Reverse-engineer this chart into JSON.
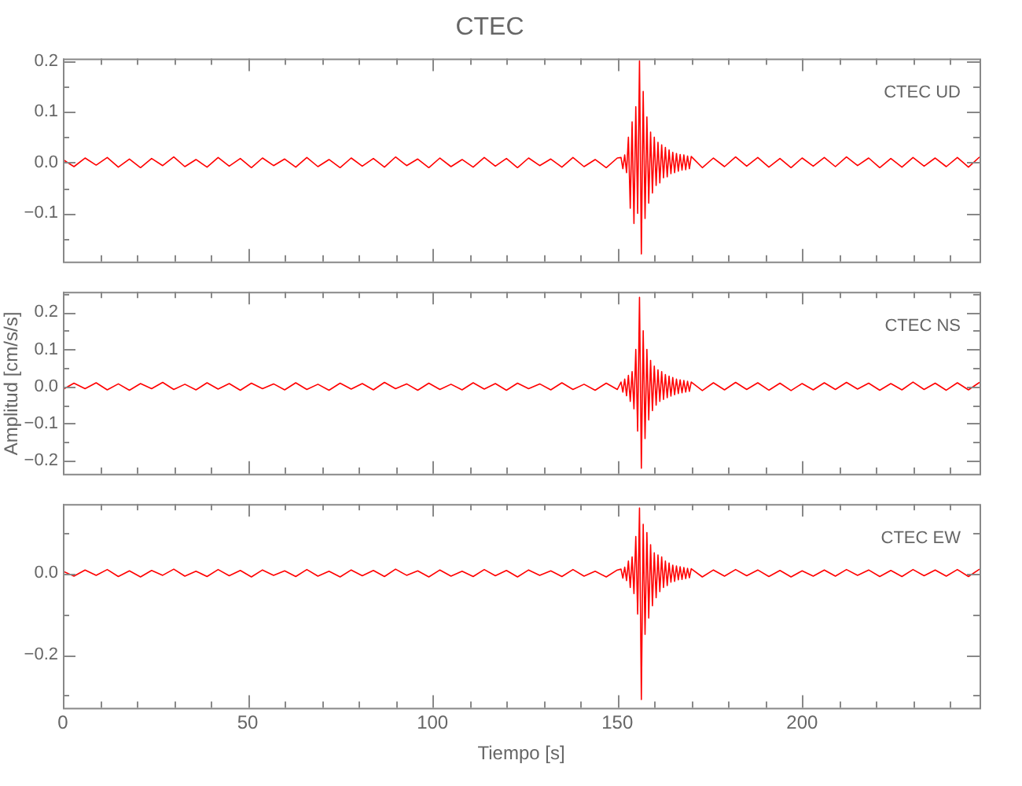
{
  "chart_data": [
    {
      "type": "line",
      "title": "CTEC",
      "annotations": [
        "CTEC UD"
      ],
      "tick_labels": "y",
      "grid": false,
      "legend": false,
      "marker": "none",
      "line_style": "solid",
      "xlim": [
        0,
        248
      ],
      "xticks": [
        0,
        {
          "value": 10,
          "label": null
        },
        {
          "value": 20,
          "label": null
        },
        {
          "value": 30,
          "label": null
        },
        {
          "value": 40,
          "label": null
        },
        50,
        {
          "value": 60,
          "label": null
        },
        {
          "value": 70,
          "label": null
        },
        {
          "value": 80,
          "label": null
        },
        {
          "value": 90,
          "label": null
        },
        100,
        {
          "value": 110,
          "label": null
        },
        {
          "value": 120,
          "label": null
        },
        {
          "value": 130,
          "label": null
        },
        {
          "value": 140,
          "label": null
        },
        150,
        {
          "value": 160,
          "label": null
        },
        {
          "value": 170,
          "label": null
        },
        {
          "value": 180,
          "label": null
        },
        {
          "value": 190,
          "label": null
        },
        200,
        {
          "value": 210,
          "label": null
        },
        {
          "value": 220,
          "label": null
        },
        {
          "value": 230,
          "label": null
        },
        {
          "value": 240,
          "label": null
        }
      ],
      "ylim": [
        -0.195,
        0.205
      ],
      "yticks": [
        {
          "value": -0.15,
          "label": null
        },
        {
          "value": -0.1,
          "label": "−0.1"
        },
        {
          "value": -0.05,
          "label": null
        },
        {
          "value": 0,
          "label": "0.0"
        },
        {
          "value": 0.05,
          "label": null
        },
        {
          "value": 0.1,
          "label": "0.1"
        },
        {
          "value": 0.15,
          "label": null
        },
        {
          "value": 0.2,
          "label": "0.2"
        }
      ],
      "series": [
        {
          "color": "#ff0000",
          "x": [
            0,
            3,
            6,
            9,
            12,
            15,
            18,
            21,
            24,
            27,
            30,
            33,
            36,
            39,
            42,
            45,
            48,
            51,
            54,
            57,
            60,
            63,
            66,
            69,
            72,
            75,
            78,
            81,
            84,
            87,
            90,
            93,
            96,
            99,
            102,
            105,
            108,
            111,
            114,
            117,
            120,
            123,
            126,
            129,
            132,
            135,
            138,
            141,
            144,
            147,
            150,
            151,
            151.5,
            152,
            152.5,
            153,
            153.5,
            154,
            154.5,
            155,
            155.5,
            156,
            156.5,
            157,
            157.5,
            158,
            158.5,
            159,
            159.5,
            160,
            160.5,
            161,
            161.5,
            162,
            162.5,
            163,
            163.5,
            164,
            164.5,
            165,
            165.5,
            166,
            166.5,
            167,
            167.5,
            168,
            168.5,
            169,
            169.5,
            170,
            173,
            176,
            179,
            182,
            185,
            188,
            191,
            194,
            197,
            200,
            203,
            206,
            209,
            212,
            215,
            218,
            221,
            224,
            227,
            230,
            233,
            236,
            239,
            242,
            245,
            248
          ],
          "values": [
            0.006,
            -0.008,
            0.009,
            -0.005,
            0.01,
            -0.009,
            0.007,
            -0.01,
            0.008,
            -0.006,
            0.011,
            -0.008,
            0.006,
            -0.009,
            0.01,
            -0.007,
            0.008,
            -0.01,
            0.009,
            -0.006,
            0.007,
            -0.009,
            0.01,
            -0.008,
            0.006,
            -0.01,
            0.009,
            -0.007,
            0.008,
            -0.009,
            0.011,
            -0.006,
            0.007,
            -0.01,
            0.009,
            -0.008,
            0.006,
            -0.009,
            0.01,
            -0.007,
            0.008,
            -0.01,
            0.009,
            -0.006,
            0.007,
            -0.009,
            0.01,
            -0.008,
            0.006,
            -0.01,
            0.009,
            0.01,
            -0.012,
            0.015,
            -0.02,
            0.05,
            -0.09,
            0.08,
            -0.12,
            0.11,
            -0.1,
            0.2,
            -0.18,
            0.14,
            -0.11,
            0.09,
            -0.08,
            0.06,
            -0.06,
            0.05,
            -0.045,
            0.04,
            -0.04,
            0.035,
            -0.03,
            0.03,
            -0.028,
            0.025,
            -0.022,
            0.02,
            -0.02,
            0.018,
            -0.017,
            0.016,
            -0.015,
            0.015,
            -0.014,
            0.013,
            -0.012,
            0.012,
            -0.01,
            0.009,
            -0.008,
            0.011,
            -0.007,
            0.01,
            -0.009,
            0.008,
            -0.01,
            0.009,
            -0.007,
            0.01,
            -0.008,
            0.011,
            -0.006,
            0.009,
            -0.01,
            0.008,
            -0.009,
            0.01,
            -0.007,
            0.009,
            -0.008,
            0.01,
            -0.009,
            0.011
          ]
        }
      ]
    },
    {
      "type": "line",
      "annotations": [
        "CTEC NS"
      ],
      "ylabel": "Amplitud [cm/s/s]",
      "tick_labels": "y",
      "grid": false,
      "legend": false,
      "marker": "none",
      "line_style": "solid",
      "xlim": [
        0,
        248
      ],
      "xticks": [
        0,
        {
          "value": 10,
          "label": null
        },
        {
          "value": 20,
          "label": null
        },
        {
          "value": 30,
          "label": null
        },
        {
          "value": 40,
          "label": null
        },
        50,
        {
          "value": 60,
          "label": null
        },
        {
          "value": 70,
          "label": null
        },
        {
          "value": 80,
          "label": null
        },
        {
          "value": 90,
          "label": null
        },
        100,
        {
          "value": 110,
          "label": null
        },
        {
          "value": 120,
          "label": null
        },
        {
          "value": 130,
          "label": null
        },
        {
          "value": 140,
          "label": null
        },
        150,
        {
          "value": 160,
          "label": null
        },
        {
          "value": 170,
          "label": null
        },
        {
          "value": 180,
          "label": null
        },
        {
          "value": 190,
          "label": null
        },
        200,
        {
          "value": 210,
          "label": null
        },
        {
          "value": 220,
          "label": null
        },
        {
          "value": 230,
          "label": null
        },
        {
          "value": 240,
          "label": null
        }
      ],
      "ylim": [
        -0.235,
        0.255
      ],
      "yticks": [
        {
          "value": -0.2,
          "label": "−0.2"
        },
        {
          "value": -0.15,
          "label": null
        },
        {
          "value": -0.1,
          "label": "−0.1"
        },
        {
          "value": -0.05,
          "label": null
        },
        {
          "value": 0,
          "label": "0.0"
        },
        {
          "value": 0.05,
          "label": null
        },
        {
          "value": 0.1,
          "label": "0.1"
        },
        {
          "value": 0.15,
          "label": null
        },
        {
          "value": 0.2,
          "label": "0.2"
        },
        {
          "value": 0.25,
          "label": null
        }
      ],
      "series": [
        {
          "color": "#ff0000",
          "x": [
            0,
            3,
            6,
            9,
            12,
            15,
            18,
            21,
            24,
            27,
            30,
            33,
            36,
            39,
            42,
            45,
            48,
            51,
            54,
            57,
            60,
            63,
            66,
            69,
            72,
            75,
            78,
            81,
            84,
            87,
            90,
            93,
            96,
            99,
            102,
            105,
            108,
            111,
            114,
            117,
            120,
            123,
            126,
            129,
            132,
            135,
            138,
            141,
            144,
            147,
            150,
            151,
            151.5,
            152,
            152.5,
            153,
            153.5,
            154,
            154.5,
            155,
            155.5,
            156,
            156.5,
            157,
            157.5,
            158,
            158.5,
            159,
            159.5,
            160,
            160.5,
            161,
            161.5,
            162,
            162.5,
            163,
            163.5,
            164,
            164.5,
            165,
            165.5,
            166,
            166.5,
            167,
            167.5,
            168,
            168.5,
            169,
            169.5,
            170,
            173,
            176,
            179,
            182,
            185,
            188,
            191,
            194,
            197,
            200,
            203,
            206,
            209,
            212,
            215,
            218,
            221,
            224,
            227,
            230,
            233,
            236,
            239,
            242,
            245,
            248
          ],
          "values": [
            -0.008,
            0.009,
            -0.006,
            0.01,
            -0.009,
            0.007,
            -0.01,
            0.008,
            -0.006,
            0.011,
            -0.008,
            0.006,
            -0.009,
            0.01,
            -0.007,
            0.008,
            -0.01,
            0.009,
            -0.006,
            0.007,
            -0.009,
            0.01,
            -0.008,
            0.006,
            -0.01,
            0.009,
            -0.007,
            0.008,
            -0.009,
            0.011,
            -0.006,
            0.007,
            -0.01,
            0.009,
            -0.008,
            0.006,
            -0.009,
            0.01,
            -0.007,
            0.008,
            -0.01,
            0.009,
            -0.006,
            0.007,
            -0.009,
            0.01,
            -0.008,
            0.006,
            -0.01,
            0.009,
            -0.008,
            0.012,
            -0.015,
            0.02,
            -0.025,
            0.03,
            -0.04,
            0.04,
            -0.06,
            0.1,
            -0.12,
            0.24,
            -0.22,
            0.15,
            -0.14,
            0.1,
            -0.09,
            0.07,
            -0.065,
            0.055,
            -0.05,
            0.045,
            -0.04,
            0.04,
            -0.035,
            0.032,
            -0.03,
            0.028,
            -0.026,
            0.024,
            -0.022,
            0.02,
            -0.019,
            0.018,
            -0.017,
            0.016,
            -0.015,
            0.014,
            -0.013,
            0.012,
            -0.011,
            0.01,
            -0.009,
            0.011,
            -0.008,
            0.01,
            -0.01,
            0.009,
            -0.011,
            0.008,
            -0.009,
            0.01,
            -0.008,
            0.011,
            -0.007,
            0.009,
            -0.01,
            0.008,
            -0.009,
            0.012,
            -0.008,
            0.009,
            -0.01,
            0.01,
            -0.009,
            0.011
          ]
        }
      ]
    },
    {
      "type": "line",
      "annotations": [
        "CTEC EW"
      ],
      "xlabel": "Tiempo [s]",
      "grid": false,
      "legend": false,
      "marker": "none",
      "line_style": "solid",
      "xlim": [
        0,
        248
      ],
      "xticks": [
        0,
        {
          "value": 10,
          "label": null
        },
        {
          "value": 20,
          "label": null
        },
        {
          "value": 30,
          "label": null
        },
        {
          "value": 40,
          "label": null
        },
        50,
        {
          "value": 60,
          "label": null
        },
        {
          "value": 70,
          "label": null
        },
        {
          "value": 80,
          "label": null
        },
        {
          "value": 90,
          "label": null
        },
        100,
        {
          "value": 110,
          "label": null
        },
        {
          "value": 120,
          "label": null
        },
        {
          "value": 130,
          "label": null
        },
        {
          "value": 140,
          "label": null
        },
        150,
        {
          "value": 160,
          "label": null
        },
        {
          "value": 170,
          "label": null
        },
        {
          "value": 180,
          "label": null
        },
        {
          "value": 190,
          "label": null
        },
        200,
        {
          "value": 210,
          "label": null
        },
        {
          "value": 220,
          "label": null
        },
        {
          "value": 230,
          "label": null
        },
        {
          "value": 240,
          "label": null
        }
      ],
      "ylim": [
        -0.33,
        0.17
      ],
      "yticks": [
        {
          "value": -0.3,
          "label": null
        },
        {
          "value": -0.2,
          "label": "−0.2"
        },
        {
          "value": -0.1,
          "label": null
        },
        {
          "value": 0,
          "label": "0.0"
        },
        {
          "value": 0.1,
          "label": null
        }
      ],
      "series": [
        {
          "color": "#ff0000",
          "x": [
            0,
            3,
            6,
            9,
            12,
            15,
            18,
            21,
            24,
            27,
            30,
            33,
            36,
            39,
            42,
            45,
            48,
            51,
            54,
            57,
            60,
            63,
            66,
            69,
            72,
            75,
            78,
            81,
            84,
            87,
            90,
            93,
            96,
            99,
            102,
            105,
            108,
            111,
            114,
            117,
            120,
            123,
            126,
            129,
            132,
            135,
            138,
            141,
            144,
            147,
            150,
            151,
            151.5,
            152,
            152.5,
            153,
            153.5,
            154,
            154.5,
            155,
            155.5,
            156,
            156.5,
            157,
            157.5,
            158,
            158.5,
            159,
            159.5,
            160,
            160.5,
            161,
            161.5,
            162,
            162.5,
            163,
            163.5,
            164,
            164.5,
            165,
            165.5,
            166,
            166.5,
            167,
            167.5,
            168,
            168.5,
            169,
            169.5,
            170,
            173,
            176,
            179,
            182,
            185,
            188,
            191,
            194,
            197,
            200,
            203,
            206,
            209,
            212,
            215,
            218,
            221,
            224,
            227,
            230,
            233,
            236,
            239,
            242,
            245,
            248
          ],
          "values": [
            0.005,
            -0.007,
            0.008,
            -0.005,
            0.009,
            -0.008,
            0.006,
            -0.009,
            0.007,
            -0.005,
            0.01,
            -0.007,
            0.005,
            -0.008,
            0.009,
            -0.006,
            0.007,
            -0.009,
            0.008,
            -0.005,
            0.006,
            -0.008,
            0.009,
            -0.007,
            0.005,
            -0.009,
            0.008,
            -0.006,
            0.007,
            -0.008,
            0.01,
            -0.005,
            0.006,
            -0.009,
            0.008,
            -0.007,
            0.005,
            -0.008,
            0.009,
            -0.006,
            0.007,
            -0.009,
            0.008,
            -0.005,
            0.006,
            -0.008,
            0.009,
            -0.007,
            0.005,
            -0.009,
            0.008,
            0.01,
            -0.012,
            0.015,
            -0.018,
            0.03,
            -0.035,
            0.04,
            -0.05,
            0.09,
            -0.1,
            0.16,
            -0.31,
            0.12,
            -0.15,
            0.1,
            -0.11,
            0.07,
            -0.08,
            0.05,
            -0.06,
            0.045,
            -0.045,
            0.04,
            -0.035,
            0.03,
            -0.03,
            0.025,
            -0.022,
            0.02,
            -0.02,
            0.018,
            -0.016,
            0.016,
            -0.015,
            0.014,
            -0.013,
            0.012,
            -0.011,
            0.011,
            -0.009,
            0.008,
            -0.007,
            0.009,
            -0.006,
            0.008,
            -0.008,
            0.007,
            -0.009,
            0.006,
            -0.007,
            0.008,
            -0.007,
            0.009,
            -0.005,
            0.008,
            -0.008,
            0.007,
            -0.008,
            0.009,
            -0.006,
            0.008,
            -0.007,
            0.009,
            -0.008,
            0.01
          ]
        }
      ]
    }
  ]
}
